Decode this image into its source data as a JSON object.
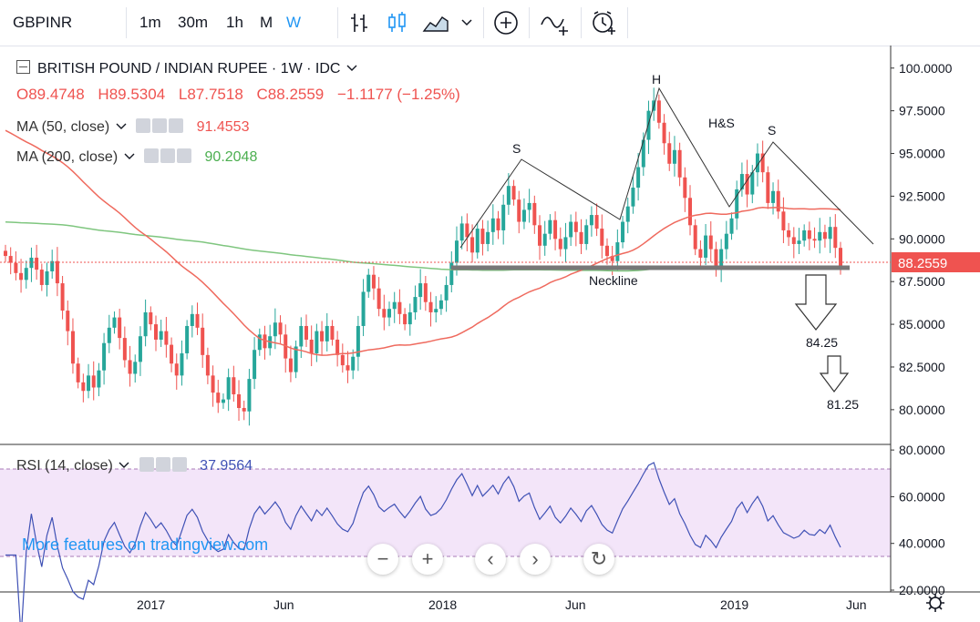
{
  "toolbar": {
    "symbol": "GBPINR",
    "intervals": [
      "1m",
      "30m",
      "1h",
      "M",
      "W"
    ],
    "active_interval": "W",
    "icons": [
      "bar-style-icon",
      "candle-style-icon",
      "area-style-icon",
      "chevron-down-icon",
      "add-compare-icon",
      "indicators-icon",
      "alert-clock-icon"
    ]
  },
  "legend": {
    "title": "BRITISH POUND / INDIAN RUPEE · 1W · IDC",
    "ohlc": {
      "o": "O89.4748",
      "h": "H89.5304",
      "l": "L87.7518",
      "c": "C88.2559",
      "change": "−1.1177 (−1.25%)"
    },
    "ma50": {
      "label": "MA (50, close)",
      "value": "91.4553",
      "color": "#f05b4f"
    },
    "ma200": {
      "label": "MA (200, close)",
      "value": "90.2048",
      "color": "#4caf50"
    },
    "rsi": {
      "label": "RSI (14, close)",
      "value": "37.9564",
      "color": "#3f51b5"
    }
  },
  "annotations": {
    "left_shoulder": "S",
    "head": "H",
    "pattern": "H&S",
    "right_shoulder": "S",
    "neckline": "Neckline",
    "target1": "84.25",
    "target2": "81.25"
  },
  "watermark": "More features on tradingview.com",
  "chart_data": [
    {
      "type": "candlestick",
      "title": "BRITISH POUND / INDIAN RUPEE · 1W · IDC",
      "x_labels": [
        "2017",
        "Jun",
        "2018",
        "Jun",
        "2019",
        "Jun"
      ],
      "ylim": [
        78.5,
        101.0
      ],
      "y_ticks": [
        "100.0000",
        "97.5000",
        "95.0000",
        "92.5000",
        "90.0000",
        "87.5000",
        "85.0000",
        "82.5000",
        "80.0000"
      ],
      "last_price": "88.2559",
      "ohlc_last": {
        "open": 89.4748,
        "high": 89.5304,
        "low": 87.7518,
        "close": 88.2559
      },
      "close_series": [
        89.0,
        88.6,
        88.0,
        87.6,
        88.3,
        88.9,
        88.2,
        87.3,
        88.1,
        88.7,
        87.4,
        85.8,
        84.6,
        82.7,
        81.6,
        81.1,
        82.0,
        81.3,
        82.3,
        83.9,
        84.8,
        85.4,
        84.2,
        82.9,
        82.1,
        82.8,
        84.3,
        85.7,
        85.0,
        84.1,
        84.6,
        83.8,
        82.7,
        82.0,
        83.3,
        84.9,
        85.6,
        84.8,
        83.2,
        82.0,
        81.0,
        80.4,
        80.6,
        81.9,
        80.9,
        80.1,
        79.9,
        81.8,
        83.5,
        84.4,
        83.6,
        84.3,
        85.1,
        84.4,
        83.0,
        82.2,
        83.7,
        84.9,
        84.1,
        83.3,
        84.6,
        84.0,
        84.9,
        84.1,
        83.2,
        82.6,
        82.3,
        83.1,
        84.9,
        86.9,
        87.9,
        87.1,
        85.9,
        85.4,
        85.9,
        86.3,
        85.6,
        85.0,
        85.7,
        86.6,
        87.4,
        86.3,
        85.7,
        85.9,
        86.4,
        87.3,
        88.6,
        89.9,
        90.9,
        90.1,
        89.2,
        90.6,
        89.7,
        90.4,
        91.2,
        90.5,
        92.0,
        93.1,
        92.3,
        91.0,
        91.7,
        92.1,
        90.8,
        89.6,
        90.3,
        91.1,
        90.0,
        89.4,
        90.1,
        91.0,
        90.4,
        89.7,
        90.8,
        91.4,
        90.6,
        89.6,
        89.0,
        88.7,
        89.8,
        91.0,
        91.9,
        93.0,
        94.2,
        95.8,
        97.5,
        98.1,
        96.8,
        95.6,
        94.4,
        95.2,
        93.6,
        92.4,
        90.8,
        89.4,
        88.9,
        90.2,
        89.4,
        88.3,
        89.4,
        90.3,
        91.2,
        92.9,
        93.8,
        92.6,
        93.9,
        95.0,
        93.9,
        92.1,
        92.8,
        91.6,
        90.5,
        90.1,
        89.7,
        89.9,
        90.5,
        90.0,
        89.9,
        90.4,
        90.0,
        90.7,
        89.4746,
        88.2559
      ],
      "ma50_end": 91.4553,
      "ma200_end": 90.2048,
      "neckline_level": 87.8,
      "targets": [
        84.25,
        81.25
      ]
    },
    {
      "type": "line",
      "title": "RSI (14, close)",
      "ylim": [
        20,
        82
      ],
      "y_ticks": [
        "80.0000",
        "60.0000",
        "40.0000",
        "20.0000"
      ],
      "band": [
        30,
        70
      ],
      "last_value": 37.9564
    }
  ]
}
